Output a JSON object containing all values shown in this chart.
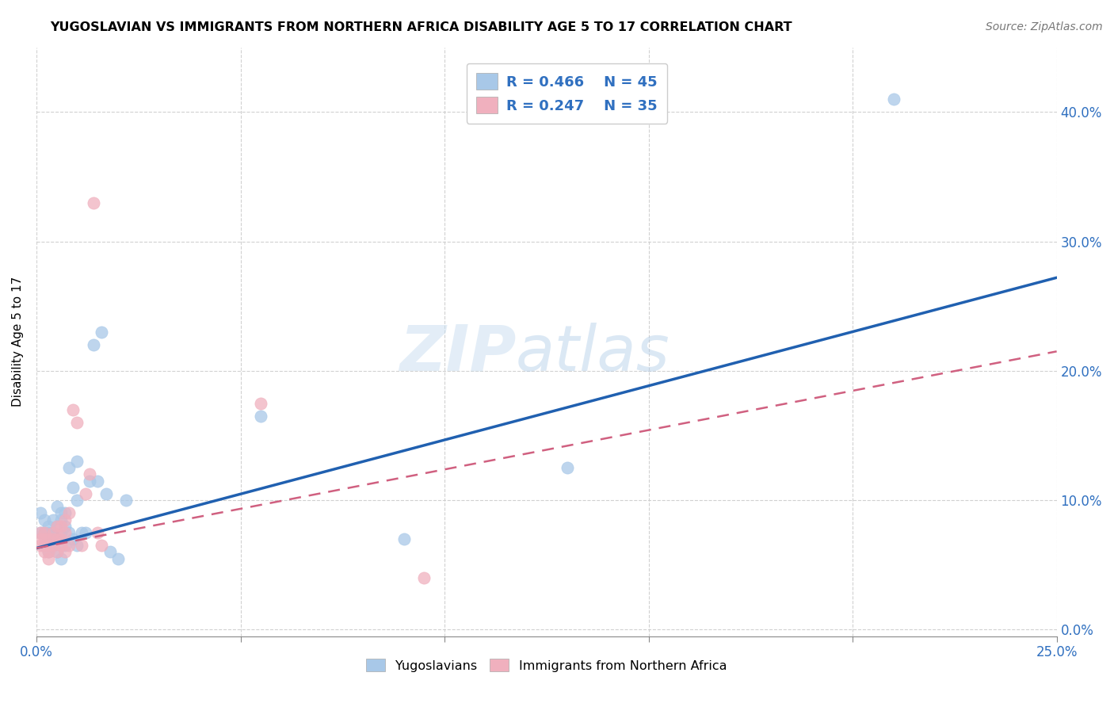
{
  "title": "YUGOSLAVIAN VS IMMIGRANTS FROM NORTHERN AFRICA DISABILITY AGE 5 TO 17 CORRELATION CHART",
  "source": "Source: ZipAtlas.com",
  "ylabel": "Disability Age 5 to 17",
  "xlim": [
    0.0,
    0.25
  ],
  "ylim": [
    -0.005,
    0.45
  ],
  "xticks": [
    0.0,
    0.05,
    0.1,
    0.15,
    0.2,
    0.25
  ],
  "xtick_labels": [
    "0.0%",
    "",
    "",
    "",
    "",
    "25.0%"
  ],
  "yticks": [
    0.0,
    0.1,
    0.2,
    0.3,
    0.4
  ],
  "ytick_labels_right": [
    "0.0%",
    "10.0%",
    "20.0%",
    "30.0%",
    "40.0%"
  ],
  "blue_color": "#a8c8e8",
  "pink_color": "#f0b0be",
  "blue_line_color": "#2060b0",
  "pink_line_color": "#d06080",
  "grid_color": "#cccccc",
  "background_color": "#ffffff",
  "watermark_zip": "ZIP",
  "watermark_atlas": "atlas",
  "legend_label_blue": "Yugoslavians",
  "legend_label_pink": "Immigrants from Northern Africa",
  "legend_R_blue": "R = 0.466",
  "legend_N_blue": "N = 45",
  "legend_R_pink": "R = 0.247",
  "legend_N_pink": "N = 35",
  "blue_line_x0": 0.0,
  "blue_line_y0": 0.063,
  "blue_line_x1": 0.25,
  "blue_line_y1": 0.272,
  "pink_line_x0": 0.0,
  "pink_line_y0": 0.063,
  "pink_line_x1": 0.25,
  "pink_line_y1": 0.215,
  "yug_x": [
    0.001,
    0.001,
    0.002,
    0.002,
    0.002,
    0.003,
    0.003,
    0.003,
    0.003,
    0.004,
    0.004,
    0.004,
    0.004,
    0.005,
    0.005,
    0.005,
    0.005,
    0.006,
    0.006,
    0.006,
    0.006,
    0.007,
    0.007,
    0.007,
    0.008,
    0.008,
    0.009,
    0.009,
    0.01,
    0.01,
    0.01,
    0.011,
    0.012,
    0.013,
    0.014,
    0.015,
    0.016,
    0.017,
    0.018,
    0.02,
    0.022,
    0.055,
    0.09,
    0.13,
    0.21
  ],
  "yug_y": [
    0.075,
    0.09,
    0.065,
    0.075,
    0.085,
    0.06,
    0.07,
    0.075,
    0.08,
    0.065,
    0.07,
    0.075,
    0.085,
    0.06,
    0.07,
    0.08,
    0.095,
    0.055,
    0.075,
    0.085,
    0.09,
    0.065,
    0.08,
    0.09,
    0.075,
    0.125,
    0.07,
    0.11,
    0.065,
    0.1,
    0.13,
    0.075,
    0.075,
    0.115,
    0.22,
    0.115,
    0.23,
    0.105,
    0.06,
    0.055,
    0.1,
    0.165,
    0.07,
    0.125,
    0.41
  ],
  "afr_x": [
    0.001,
    0.001,
    0.001,
    0.002,
    0.002,
    0.002,
    0.002,
    0.003,
    0.003,
    0.003,
    0.003,
    0.004,
    0.004,
    0.004,
    0.005,
    0.005,
    0.005,
    0.006,
    0.006,
    0.006,
    0.007,
    0.007,
    0.007,
    0.008,
    0.008,
    0.009,
    0.01,
    0.011,
    0.012,
    0.013,
    0.014,
    0.015,
    0.016,
    0.055,
    0.095
  ],
  "afr_y": [
    0.065,
    0.07,
    0.075,
    0.06,
    0.065,
    0.07,
    0.075,
    0.055,
    0.06,
    0.065,
    0.07,
    0.065,
    0.07,
    0.075,
    0.06,
    0.07,
    0.08,
    0.065,
    0.07,
    0.08,
    0.06,
    0.075,
    0.085,
    0.065,
    0.09,
    0.17,
    0.16,
    0.065,
    0.105,
    0.12,
    0.33,
    0.075,
    0.065,
    0.175,
    0.04
  ]
}
